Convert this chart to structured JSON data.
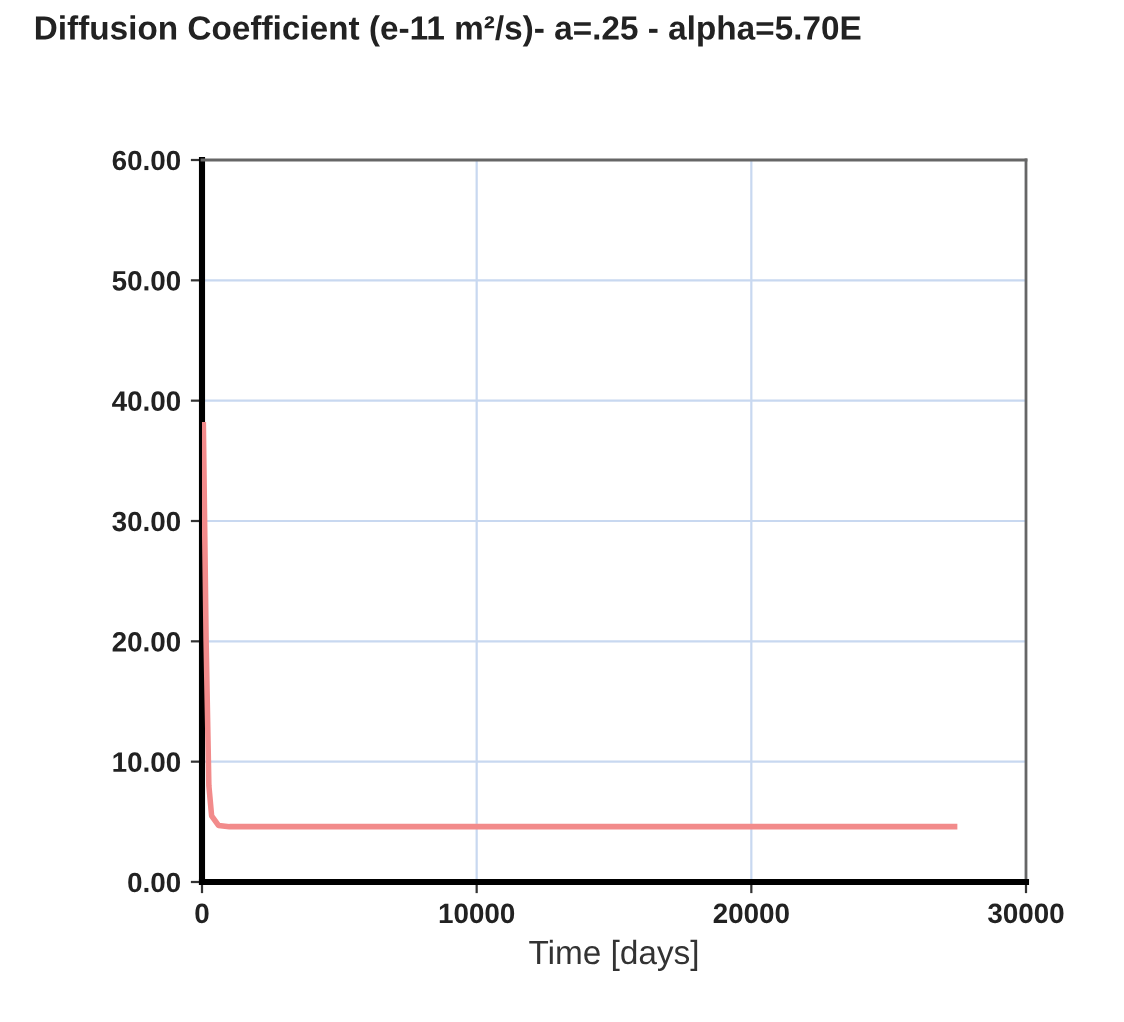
{
  "chart_data": {
    "type": "line",
    "title": "Diffusion Coefficient (e-11 m²/s)- a=.25 - alpha=5.70E",
    "xlabel": "Time [days]",
    "series": [
      {
        "color": "#f28b8b",
        "x": [
          50,
          150,
          250,
          350,
          600,
          1000,
          27400
        ],
        "values": [
          38,
          20,
          8,
          5.5,
          4.7,
          4.6,
          4.6
        ]
      }
    ],
    "xlim": [
      0,
      30000
    ],
    "xticks": [
      0,
      10000,
      20000,
      30000
    ],
    "ylim": [
      0,
      60
    ],
    "yticks": [
      {
        "value": 0,
        "label": "0.00"
      },
      {
        "value": 10,
        "label": "10.00"
      },
      {
        "value": 20,
        "label": "20.00"
      },
      {
        "value": 30,
        "label": "30.00"
      },
      {
        "value": 40,
        "label": "40.00"
      },
      {
        "value": 50,
        "label": "50.00"
      },
      {
        "value": 60,
        "label": "60.00"
      }
    ],
    "grid": true,
    "marker": "none",
    "line_style": "solid"
  }
}
